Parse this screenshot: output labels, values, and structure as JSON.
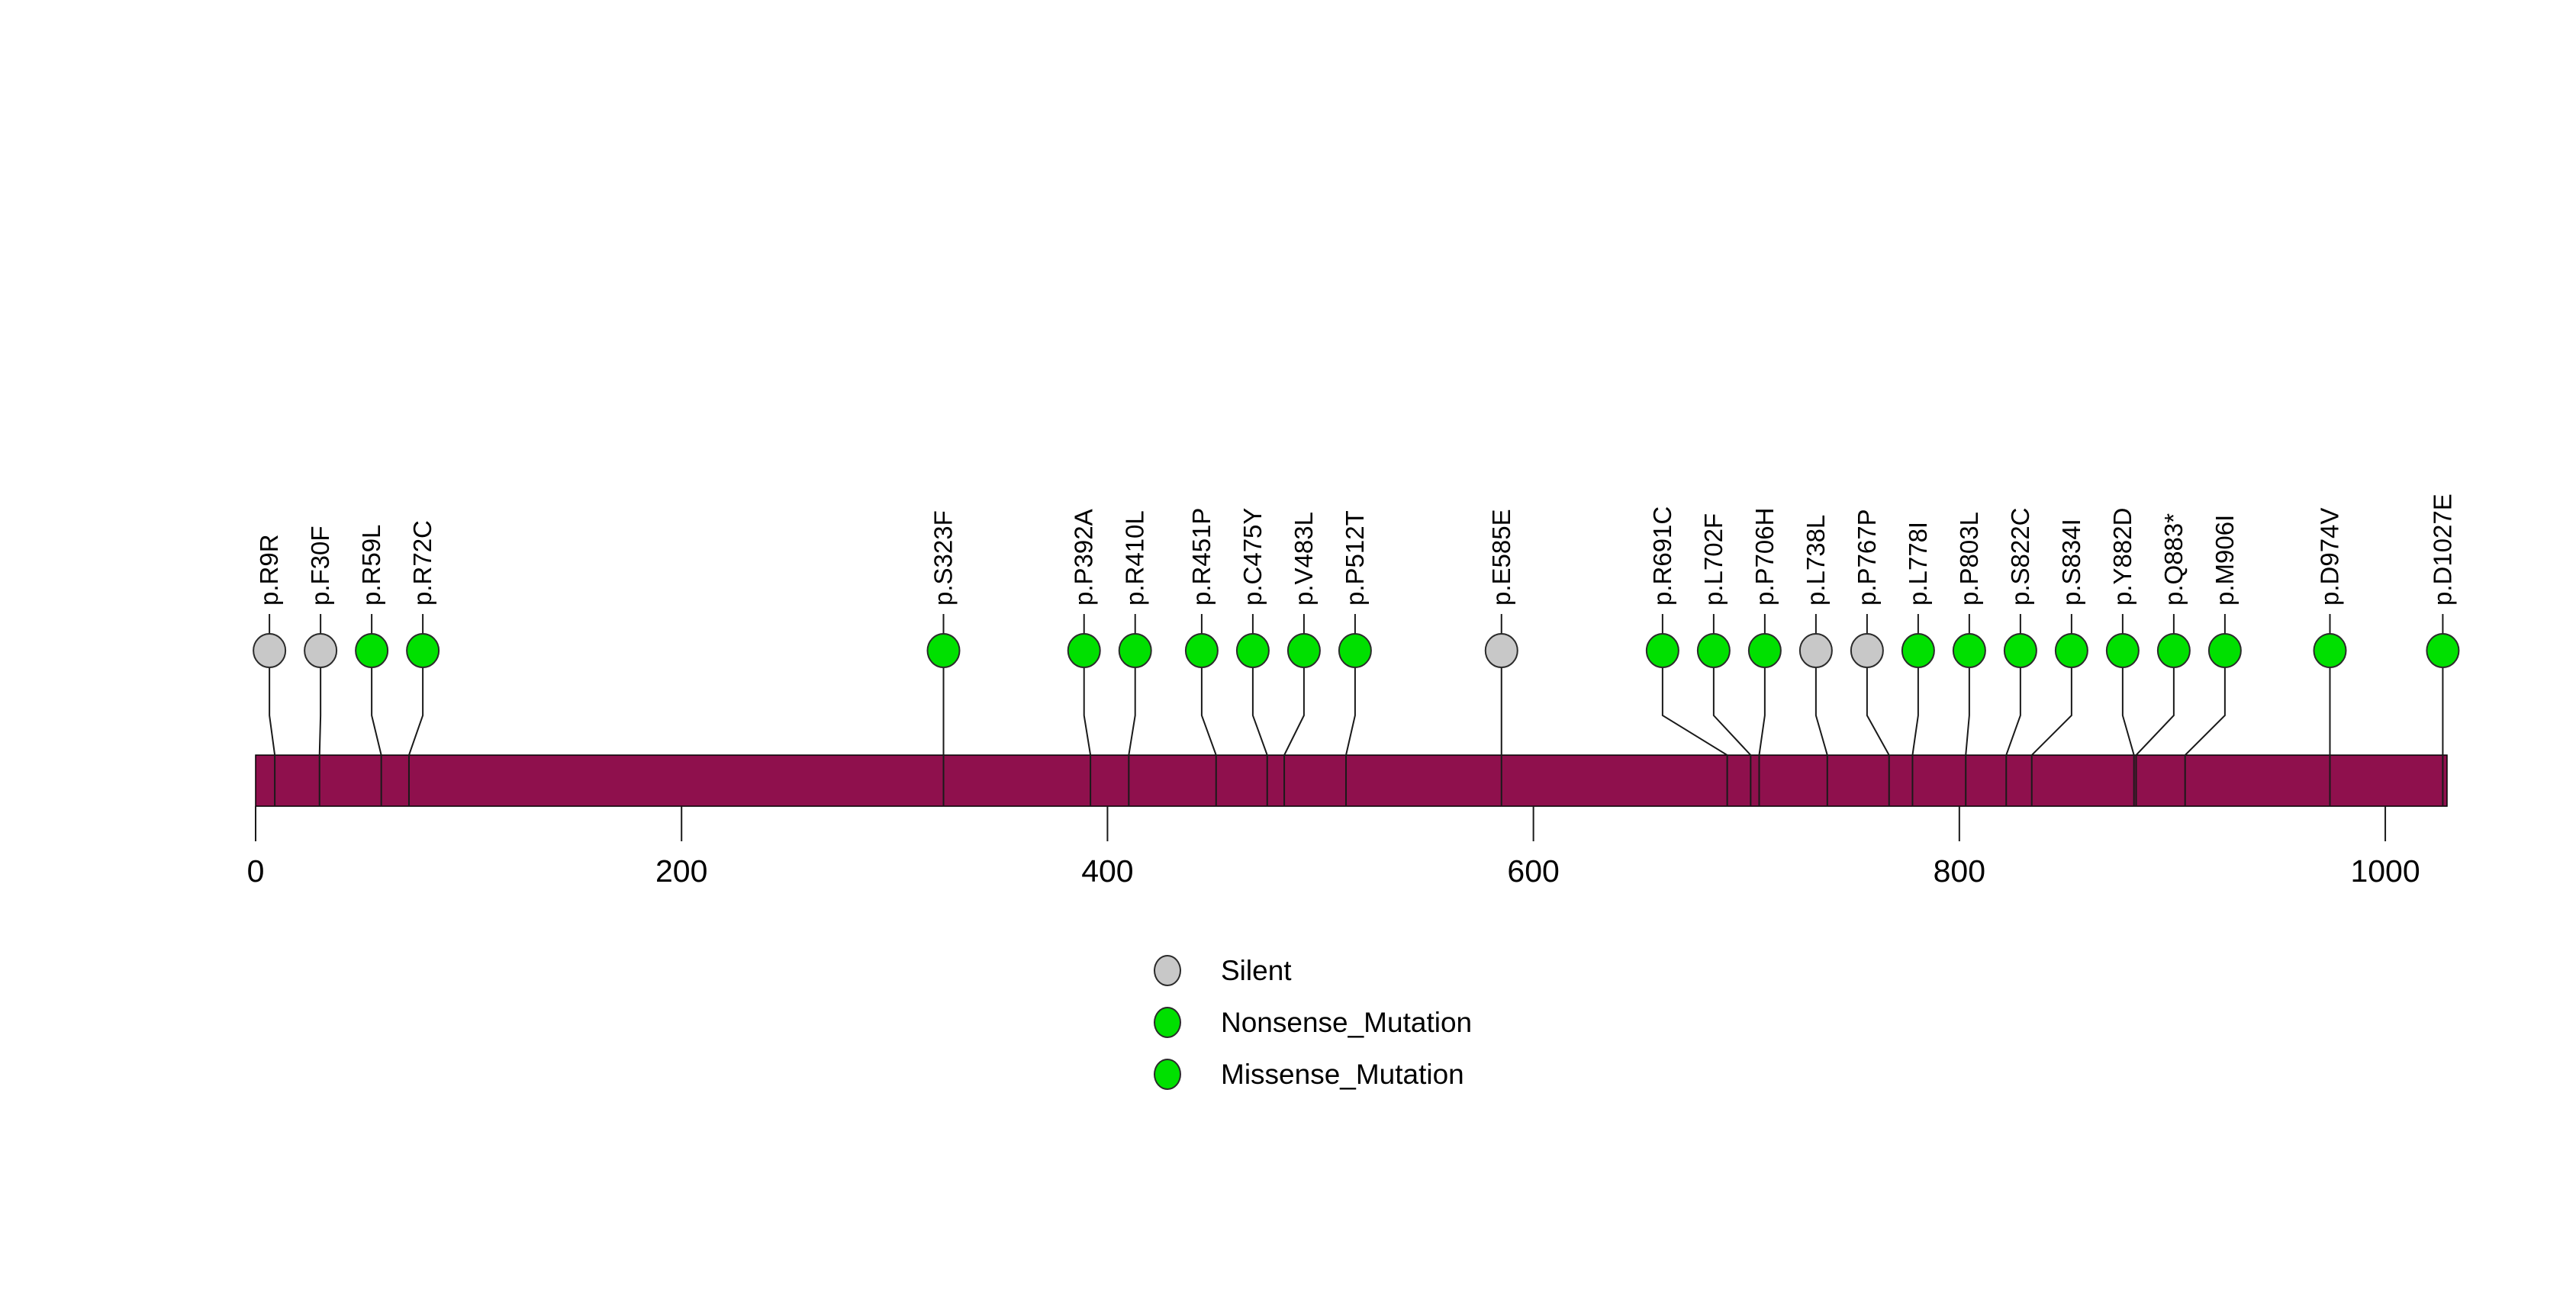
{
  "figure": {
    "background_color": "#FFFFFF",
    "legend": {
      "items": [
        {
          "label": "Silent",
          "color": "#C8C8C8"
        },
        {
          "label": "Nonsense_Mutation",
          "color": "#00E000"
        },
        {
          "label": "Missense_Mutation",
          "color": "#00E000"
        }
      ]
    }
  },
  "chart_data": {
    "type": "lollipop",
    "variant": "protein-mutation-lollipop-plot",
    "title": "",
    "xlabel": "",
    "ylabel": "",
    "xlim": [
      0,
      1029
    ],
    "protein_length": 1029,
    "x_ticks": [
      0,
      200,
      400,
      600,
      800,
      1000
    ],
    "grid": false,
    "legend_position": "bottom-center",
    "protein_bar_color": "#8F104D",
    "class_colors": {
      "Silent": "#C8C8C8",
      "Nonsense_Mutation": "#00E000",
      "Missense_Mutation": "#00E000"
    },
    "mutations": [
      {
        "label": "p.R9R",
        "position": 9,
        "class": "Silent"
      },
      {
        "label": "p.F30F",
        "position": 30,
        "class": "Silent"
      },
      {
        "label": "p.R59L",
        "position": 59,
        "class": "Missense_Mutation"
      },
      {
        "label": "p.R72C",
        "position": 72,
        "class": "Missense_Mutation"
      },
      {
        "label": "p.S323F",
        "position": 323,
        "class": "Missense_Mutation"
      },
      {
        "label": "p.P392A",
        "position": 392,
        "class": "Missense_Mutation"
      },
      {
        "label": "p.R410L",
        "position": 410,
        "class": "Missense_Mutation"
      },
      {
        "label": "p.R451P",
        "position": 451,
        "class": "Missense_Mutation"
      },
      {
        "label": "p.C475Y",
        "position": 475,
        "class": "Missense_Mutation"
      },
      {
        "label": "p.V483L",
        "position": 483,
        "class": "Missense_Mutation"
      },
      {
        "label": "p.P512T",
        "position": 512,
        "class": "Missense_Mutation"
      },
      {
        "label": "p.E585E",
        "position": 585,
        "class": "Silent"
      },
      {
        "label": "p.R691C",
        "position": 691,
        "class": "Missense_Mutation"
      },
      {
        "label": "p.L702F",
        "position": 702,
        "class": "Missense_Mutation"
      },
      {
        "label": "p.P706H",
        "position": 706,
        "class": "Missense_Mutation"
      },
      {
        "label": "p.L738L",
        "position": 738,
        "class": "Silent"
      },
      {
        "label": "p.P767P",
        "position": 767,
        "class": "Silent"
      },
      {
        "label": "p.L778I",
        "position": 778,
        "class": "Missense_Mutation"
      },
      {
        "label": "p.P803L",
        "position": 803,
        "class": "Missense_Mutation"
      },
      {
        "label": "p.S822C",
        "position": 822,
        "class": "Missense_Mutation"
      },
      {
        "label": "p.S834I",
        "position": 834,
        "class": "Missense_Mutation"
      },
      {
        "label": "p.Y882D",
        "position": 882,
        "class": "Missense_Mutation"
      },
      {
        "label": "p.Q883*",
        "position": 883,
        "class": "Nonsense_Mutation"
      },
      {
        "label": "p.M906I",
        "position": 906,
        "class": "Missense_Mutation"
      },
      {
        "label": "p.D974V",
        "position": 974,
        "class": "Missense_Mutation"
      },
      {
        "label": "p.D1027E",
        "position": 1027,
        "class": "Missense_Mutation"
      }
    ]
  }
}
